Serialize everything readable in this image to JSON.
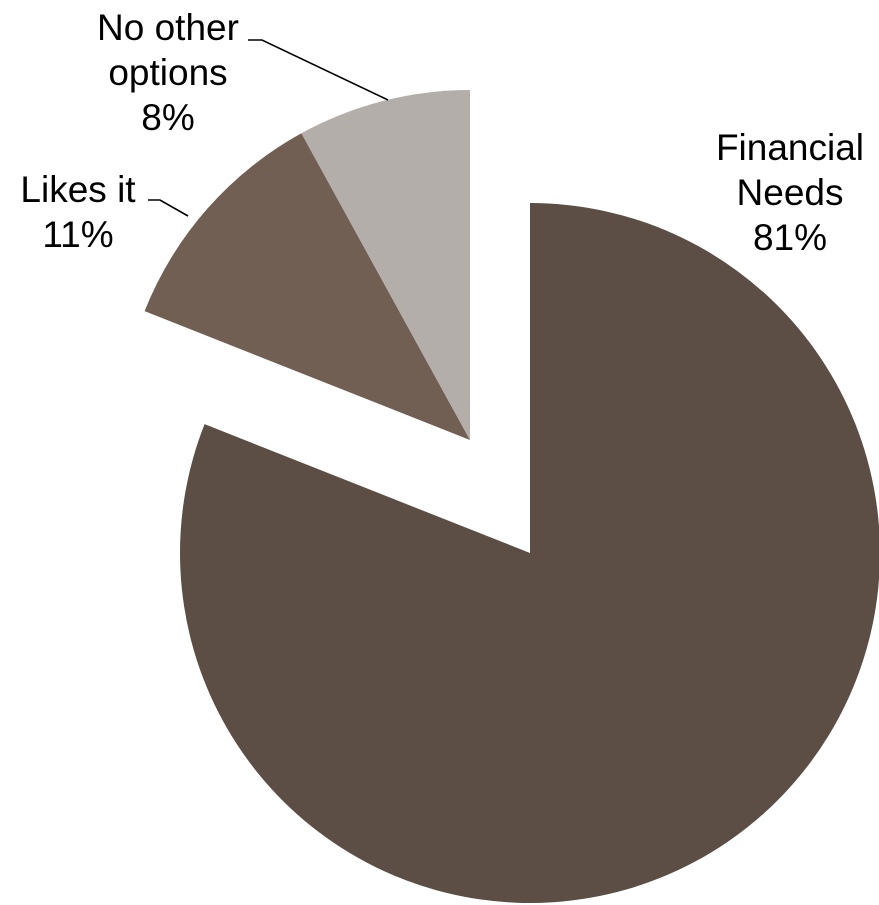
{
  "chart_data": {
    "type": "pie",
    "title": "",
    "exploded": true,
    "start_angle_deg": 0,
    "direction": "clockwise",
    "slices": [
      {
        "name_lines": [
          "Financial",
          "Needs"
        ],
        "value": 81,
        "value_label": "81%",
        "color": "#5c4e44"
      },
      {
        "name_lines": [
          "Likes it"
        ],
        "value": 11,
        "value_label": "11%",
        "color": "#725f53"
      },
      {
        "name_lines": [
          "No other",
          "options"
        ],
        "value": 8,
        "value_label": "8%",
        "color": "#b3aea9"
      }
    ],
    "legend": "none"
  }
}
